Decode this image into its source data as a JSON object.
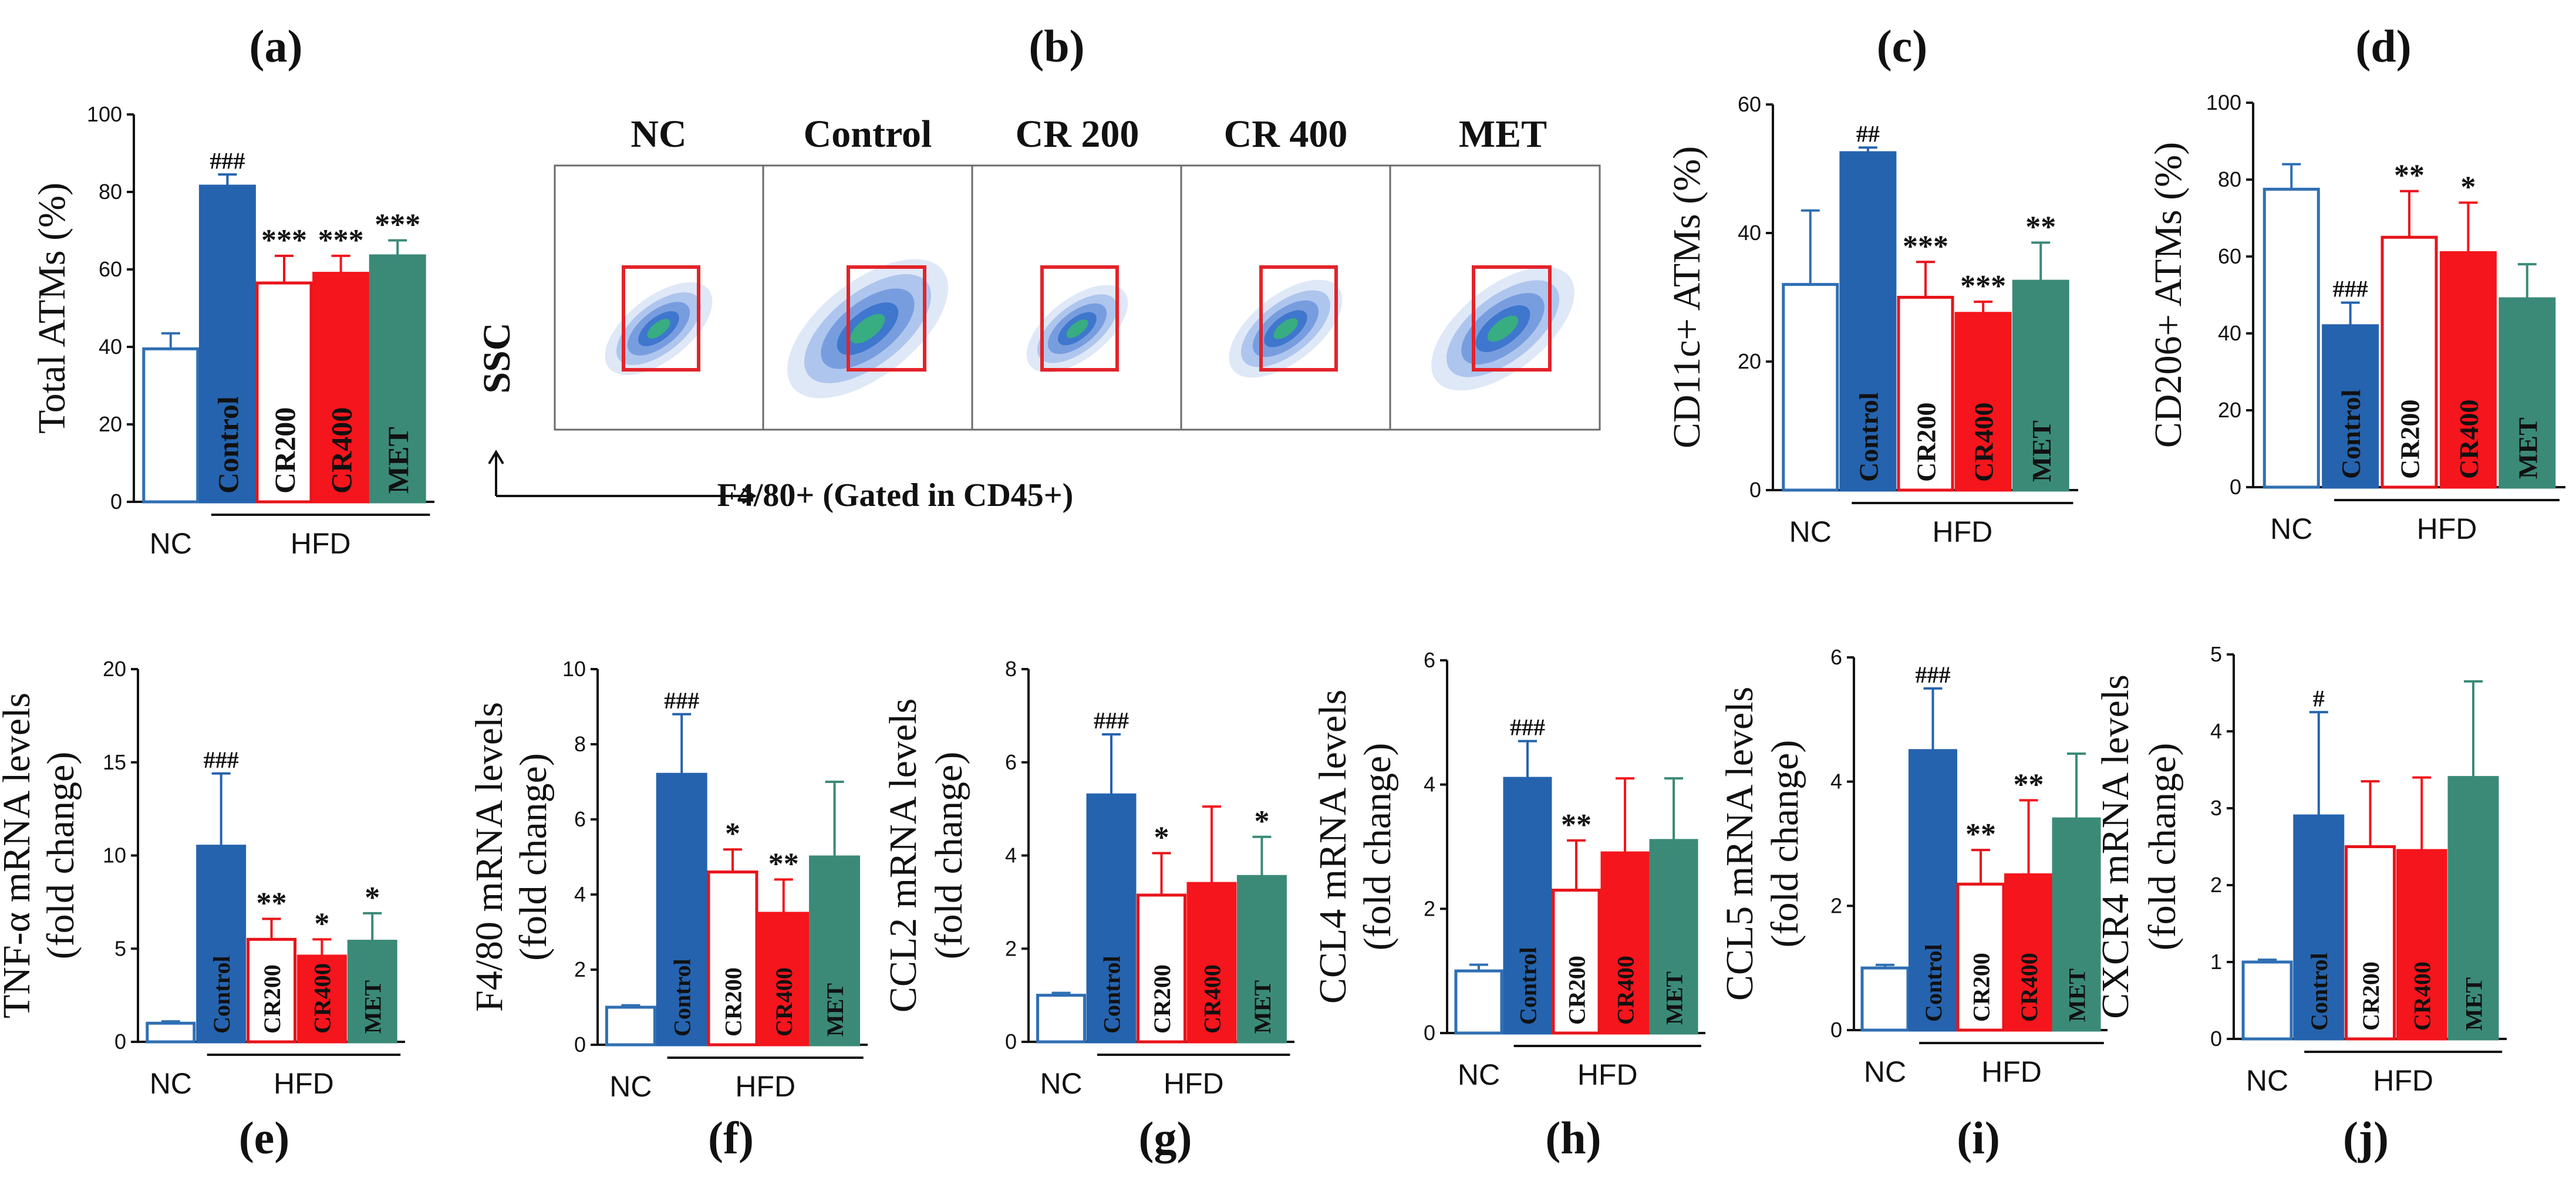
{
  "colors": {
    "nc": "#2f6fb3",
    "control": "#2563ae",
    "cr200": "#e8141b",
    "cr400": "#f5151c",
    "met": "#3b8a78",
    "gate": "#e3232a"
  },
  "group_labels": {
    "nc": "NC",
    "hfd": "HFD"
  },
  "flow": {
    "panel_label": "(b)",
    "samples": [
      "NC",
      "Control",
      "CR 200",
      "CR 400",
      "MET"
    ],
    "y_axis": "SSC",
    "x_axis": "F4/80+ (Gated in CD45+)"
  },
  "chart_data": [
    {
      "id": "a",
      "panel_label": "(a)",
      "type": "bar",
      "ylabel": "Total ATMs (%)",
      "ylim": [
        0,
        100
      ],
      "ticks": [
        "0",
        "20",
        "40",
        "60",
        "80",
        "100"
      ],
      "categories": [
        "NC",
        "Control",
        "CR200",
        "CR400",
        "MET"
      ],
      "values": [
        39.5,
        81.5,
        56.5,
        59,
        63.5
      ],
      "errors": [
        4,
        3,
        7,
        4.5,
        4
      ],
      "annotations": [
        "",
        "###",
        "***",
        "***",
        "***"
      ]
    },
    {
      "id": "c",
      "panel_label": "(c)",
      "type": "bar",
      "ylabel": "CD11c+ ATMs (%)",
      "ylim": [
        0,
        60
      ],
      "ticks": [
        "0",
        "20",
        "40",
        "60"
      ],
      "categories": [
        "NC",
        "Control",
        "CR200",
        "CR400",
        "MET"
      ],
      "values": [
        32,
        52.5,
        30,
        27.5,
        32.5
      ],
      "errors": [
        11.5,
        0.8,
        5.5,
        1.8,
        6
      ],
      "annotations": [
        "",
        "##",
        "***",
        "***",
        "**"
      ]
    },
    {
      "id": "d",
      "panel_label": "(d)",
      "type": "bar",
      "ylabel": "CD206+ ATMs (%)",
      "ylim": [
        0,
        100
      ],
      "ticks": [
        "0",
        "20",
        "40",
        "60",
        "80",
        "100"
      ],
      "categories": [
        "NC",
        "Control",
        "CR200",
        "CR400",
        "MET"
      ],
      "values": [
        77.5,
        42,
        65,
        61,
        49
      ],
      "errors": [
        6.5,
        6,
        12,
        13,
        9
      ],
      "annotations": [
        "",
        "###",
        "**",
        "*",
        ""
      ]
    },
    {
      "id": "e",
      "panel_label": "(e)",
      "type": "bar",
      "ylabel": "TNF-α mRNA levels",
      "ylabel2": "(fold change)",
      "ylim": [
        0,
        20
      ],
      "ticks": [
        "0",
        "5",
        "10",
        "15",
        "20"
      ],
      "categories": [
        "NC",
        "Control",
        "CR200",
        "CR400",
        "MET"
      ],
      "values": [
        1,
        10.5,
        5.5,
        4.6,
        5.4
      ],
      "errors": [
        0.1,
        3.9,
        1.1,
        0.9,
        1.5
      ],
      "annotations": [
        "",
        "###",
        "**",
        "*",
        "*"
      ]
    },
    {
      "id": "f",
      "panel_label": "(f)",
      "type": "bar",
      "ylabel": "F4/80 mRNA levels",
      "ylabel2": "(fold change)",
      "ylim": [
        0,
        10
      ],
      "ticks": [
        "0",
        "2",
        "4",
        "6",
        "8",
        "10"
      ],
      "categories": [
        "NC",
        "Control",
        "CR200",
        "CR400",
        "MET"
      ],
      "values": [
        1,
        7.2,
        4.6,
        3.5,
        5
      ],
      "errors": [
        0.05,
        1.6,
        0.6,
        0.9,
        2
      ],
      "annotations": [
        "",
        "###",
        "*",
        "**",
        ""
      ]
    },
    {
      "id": "g",
      "panel_label": "(g)",
      "type": "bar",
      "ylabel": "CCL2 mRNA levels",
      "ylabel2": "(fold change)",
      "ylim": [
        0,
        8
      ],
      "ticks": [
        "0",
        "2",
        "4",
        "6",
        "8"
      ],
      "categories": [
        "NC",
        "Control",
        "CR200",
        "CR400",
        "MET"
      ],
      "values": [
        1,
        5.3,
        3.15,
        3.4,
        3.55
      ],
      "errors": [
        0.05,
        1.3,
        0.9,
        1.65,
        0.85
      ],
      "annotations": [
        "",
        "###",
        "*",
        "",
        "*"
      ]
    },
    {
      "id": "h",
      "panel_label": "(h)",
      "type": "bar",
      "ylabel": "CCL4 mRNA levels",
      "ylabel2": "(fold change)",
      "ylim": [
        0,
        6
      ],
      "ticks": [
        "0",
        "2",
        "4",
        "6"
      ],
      "categories": [
        "NC",
        "Control",
        "CR200",
        "CR400",
        "MET"
      ],
      "values": [
        1,
        4.1,
        2.3,
        2.9,
        3.1
      ],
      "errors": [
        0.1,
        0.6,
        0.8,
        1.2,
        1
      ],
      "annotations": [
        "",
        "###",
        "**",
        "",
        ""
      ]
    },
    {
      "id": "i",
      "panel_label": "(i)",
      "type": "bar",
      "ylabel": "CCL5 mRNA levels",
      "ylabel2": "(fold change)",
      "ylim": [
        0,
        6
      ],
      "ticks": [
        "0",
        "2",
        "4",
        "6"
      ],
      "categories": [
        "NC",
        "Control",
        "CR200",
        "CR400",
        "MET"
      ],
      "values": [
        1,
        4.5,
        2.35,
        2.5,
        3.4
      ],
      "errors": [
        0.05,
        1,
        0.55,
        1.2,
        1.05
      ],
      "annotations": [
        "",
        "###",
        "**",
        "**",
        ""
      ]
    },
    {
      "id": "j",
      "panel_label": "(j)",
      "type": "bar",
      "ylabel": "CXCR4 mRNA levels",
      "ylabel2": "(fold change)",
      "ylim": [
        0,
        5
      ],
      "ticks": [
        "0",
        "1",
        "2",
        "3",
        "4",
        "5"
      ],
      "categories": [
        "NC",
        "Control",
        "CR200",
        "CR400",
        "MET"
      ],
      "values": [
        1,
        2.9,
        2.5,
        2.45,
        3.4
      ],
      "errors": [
        0.03,
        1.35,
        0.85,
        0.95,
        1.25
      ],
      "annotations": [
        "",
        "#",
        "",
        "",
        ""
      ]
    }
  ]
}
